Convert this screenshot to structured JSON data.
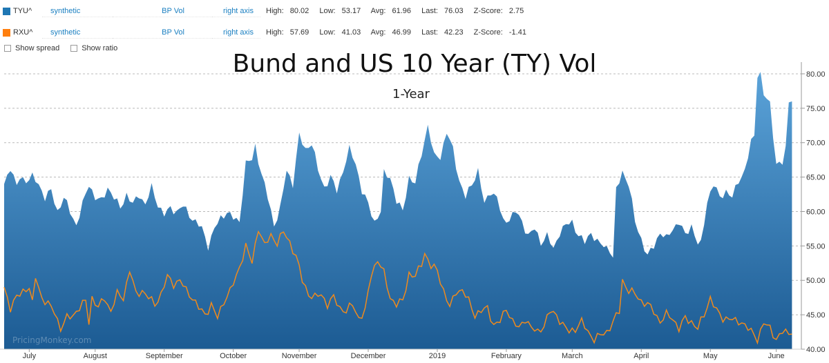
{
  "legend": [
    {
      "symbol": "TYU^",
      "type": "synthetic",
      "unit": "BP Vol",
      "axis": "right axis",
      "high_label": "High:",
      "high": "80.02",
      "low_label": "Low:",
      "low": "53.17",
      "avg_label": "Avg:",
      "avg": "61.96",
      "last_label": "Last:",
      "last": "76.03",
      "z_label": "Z-Score:",
      "z": "2.75",
      "color": "#1f77b4"
    },
    {
      "symbol": "RXU^",
      "type": "synthetic",
      "unit": "BP Vol",
      "axis": "right axis",
      "high_label": "High:",
      "high": "57.69",
      "low_label": "Low:",
      "low": "41.03",
      "avg_label": "Avg:",
      "avg": "46.99",
      "last_label": "Last:",
      "last": "42.23",
      "z_label": "Z-Score:",
      "z": "-1.41",
      "color": "#ff7f0e"
    }
  ],
  "options": {
    "show_spread": "Show spread",
    "show_ratio": "Show ratio"
  },
  "watermark": "PricingMonkey.com",
  "chart_data": {
    "type": "area",
    "title": "Bund and US 10 Year (TY) Vol",
    "subtitle": "1-Year",
    "ylim": [
      40,
      81
    ],
    "y_ticks": [
      "40.00",
      "45.00",
      "50.00",
      "55.00",
      "60.00",
      "65.00",
      "70.00",
      "75.00",
      "80.00"
    ],
    "y_tick_values": [
      40,
      45,
      50,
      55,
      60,
      65,
      70,
      75,
      80
    ],
    "grid": true,
    "x_ticks": [
      "July",
      "August",
      "September",
      "October",
      "November",
      "December",
      "2019",
      "February",
      "March",
      "April",
      "May",
      "June"
    ],
    "x_tick_positions": [
      8,
      29,
      51,
      73,
      94,
      116,
      138,
      160,
      181,
      203,
      225,
      246
    ],
    "n_points": 255,
    "series": [
      {
        "name": "TYU^",
        "type": "area",
        "color_top": "#5ba3d9",
        "color_bottom": "#1c5b93",
        "anchors": [
          [
            0,
            64
          ],
          [
            2,
            66.5
          ],
          [
            4,
            63.5
          ],
          [
            5,
            65
          ],
          [
            7,
            64.5
          ],
          [
            9,
            65
          ],
          [
            11,
            64
          ],
          [
            13,
            62
          ],
          [
            15,
            63
          ],
          [
            17,
            60
          ],
          [
            19,
            62
          ],
          [
            21,
            60
          ],
          [
            23,
            58
          ],
          [
            25,
            61
          ],
          [
            27,
            64
          ],
          [
            29,
            62
          ],
          [
            31,
            61.5
          ],
          [
            33,
            63.5
          ],
          [
            35,
            62
          ],
          [
            37,
            60.5
          ],
          [
            39,
            62.5
          ],
          [
            41,
            61
          ],
          [
            43,
            62.5
          ],
          [
            45,
            61
          ],
          [
            47,
            63.5
          ],
          [
            49,
            61
          ],
          [
            51,
            59.5
          ],
          [
            53,
            60.5
          ],
          [
            55,
            60
          ],
          [
            57,
            60.8
          ],
          [
            59,
            59.5
          ],
          [
            61,
            58.5
          ],
          [
            63,
            57.5
          ],
          [
            65,
            55
          ],
          [
            67,
            57.5
          ],
          [
            69,
            59
          ],
          [
            71,
            60
          ],
          [
            73,
            59
          ],
          [
            75,
            58.5
          ],
          [
            76,
            63
          ],
          [
            77,
            67
          ],
          [
            79,
            67.5
          ],
          [
            80,
            69.5
          ],
          [
            82,
            65.5
          ],
          [
            84,
            62
          ],
          [
            86,
            58
          ],
          [
            88,
            60.5
          ],
          [
            90,
            66
          ],
          [
            92,
            64
          ],
          [
            94,
            71
          ],
          [
            96,
            69
          ],
          [
            98,
            70
          ],
          [
            100,
            66
          ],
          [
            102,
            63.5
          ],
          [
            104,
            65
          ],
          [
            106,
            63
          ],
          [
            108,
            66
          ],
          [
            110,
            69
          ],
          [
            112,
            67
          ],
          [
            114,
            63
          ],
          [
            116,
            61
          ],
          [
            118,
            58.5
          ],
          [
            120,
            60
          ],
          [
            121,
            65.5
          ],
          [
            123,
            65
          ],
          [
            125,
            61.5
          ],
          [
            127,
            60
          ],
          [
            129,
            65
          ],
          [
            131,
            64
          ],
          [
            133,
            68.5
          ],
          [
            135,
            72.5
          ],
          [
            137,
            68
          ],
          [
            139,
            68
          ],
          [
            141,
            71.5
          ],
          [
            143,
            69
          ],
          [
            145,
            64.5
          ],
          [
            147,
            62
          ],
          [
            149,
            64
          ],
          [
            151,
            66
          ],
          [
            153,
            61
          ],
          [
            155,
            63
          ],
          [
            157,
            62
          ],
          [
            159,
            58.5
          ],
          [
            161,
            59
          ],
          [
            163,
            60
          ],
          [
            165,
            58.5
          ],
          [
            167,
            56.5
          ],
          [
            169,
            57.5
          ],
          [
            171,
            55.5
          ],
          [
            173,
            56.5
          ],
          [
            175,
            54.5
          ],
          [
            177,
            57
          ],
          [
            179,
            58
          ],
          [
            181,
            58.5
          ],
          [
            183,
            56.5
          ],
          [
            185,
            55.5
          ],
          [
            187,
            57
          ],
          [
            189,
            55.5
          ],
          [
            191,
            55
          ],
          [
            193,
            54.5
          ],
          [
            194,
            53.2
          ],
          [
            195,
            63
          ],
          [
            197,
            65.8
          ],
          [
            199,
            64
          ],
          [
            201,
            58.5
          ],
          [
            203,
            56
          ],
          [
            205,
            53.5
          ],
          [
            207,
            55
          ],
          [
            209,
            57
          ],
          [
            211,
            56
          ],
          [
            213,
            57.5
          ],
          [
            215,
            58.5
          ],
          [
            217,
            56.5
          ],
          [
            219,
            58
          ],
          [
            221,
            55.3
          ],
          [
            222,
            55.2
          ],
          [
            224,
            61.5
          ],
          [
            226,
            64
          ],
          [
            228,
            62
          ],
          [
            230,
            63
          ],
          [
            232,
            62
          ],
          [
            234,
            64.5
          ],
          [
            236,
            66
          ],
          [
            238,
            70
          ],
          [
            239,
            71
          ],
          [
            240,
            80
          ],
          [
            241,
            80
          ],
          [
            242,
            77
          ],
          [
            244,
            75.5
          ],
          [
            246,
            67
          ],
          [
            248,
            67
          ],
          [
            249,
            69
          ],
          [
            250,
            76
          ],
          [
            251,
            76
          ]
        ]
      },
      {
        "name": "RXU^",
        "type": "line",
        "color": "#f08a1c",
        "anchors": [
          [
            0,
            49
          ],
          [
            2,
            46
          ],
          [
            4,
            47.5
          ],
          [
            6,
            48.5
          ],
          [
            8,
            49
          ],
          [
            9,
            46.5
          ],
          [
            10,
            50.5
          ],
          [
            12,
            47.5
          ],
          [
            14,
            46.5
          ],
          [
            16,
            45.5
          ],
          [
            18,
            43
          ],
          [
            20,
            44.5
          ],
          [
            22,
            45
          ],
          [
            24,
            46
          ],
          [
            26,
            47
          ],
          [
            27,
            44
          ],
          [
            28,
            47.5
          ],
          [
            30,
            46
          ],
          [
            32,
            47.5
          ],
          [
            34,
            45.5
          ],
          [
            36,
            48
          ],
          [
            38,
            47.5
          ],
          [
            40,
            51.5
          ],
          [
            42,
            48
          ],
          [
            44,
            48.5
          ],
          [
            46,
            47.5
          ],
          [
            48,
            46.5
          ],
          [
            50,
            48
          ],
          [
            52,
            50.5
          ],
          [
            54,
            49.5
          ],
          [
            56,
            50
          ],
          [
            58,
            48.5
          ],
          [
            60,
            47.5
          ],
          [
            62,
            46
          ],
          [
            64,
            45
          ],
          [
            66,
            46.5
          ],
          [
            68,
            44.5
          ],
          [
            70,
            47
          ],
          [
            72,
            48.5
          ],
          [
            74,
            50.5
          ],
          [
            75,
            52
          ],
          [
            77,
            55
          ],
          [
            79,
            52.5
          ],
          [
            81,
            57.7
          ],
          [
            83,
            55
          ],
          [
            85,
            56.5
          ],
          [
            87,
            55.5
          ],
          [
            89,
            57
          ],
          [
            91,
            55.5
          ],
          [
            93,
            53.5
          ],
          [
            95,
            50
          ],
          [
            97,
            48
          ],
          [
            99,
            47.5
          ],
          [
            101,
            48
          ],
          [
            103,
            46.5
          ],
          [
            105,
            47.5
          ],
          [
            107,
            46
          ],
          [
            109,
            45.5
          ],
          [
            111,
            46.5
          ],
          [
            113,
            44.5
          ],
          [
            115,
            45.5
          ],
          [
            117,
            51
          ],
          [
            119,
            53
          ],
          [
            121,
            51
          ],
          [
            123,
            47.5
          ],
          [
            125,
            46.5
          ],
          [
            127,
            47
          ],
          [
            129,
            51
          ],
          [
            131,
            50.5
          ],
          [
            133,
            52.5
          ],
          [
            134,
            54
          ],
          [
            136,
            52
          ],
          [
            138,
            51.5
          ],
          [
            140,
            48.5
          ],
          [
            142,
            46
          ],
          [
            144,
            48.5
          ],
          [
            146,
            48.5
          ],
          [
            148,
            47
          ],
          [
            150,
            45
          ],
          [
            152,
            45.5
          ],
          [
            154,
            46
          ],
          [
            156,
            43.5
          ],
          [
            158,
            44
          ],
          [
            160,
            46
          ],
          [
            162,
            44
          ],
          [
            164,
            43
          ],
          [
            166,
            44.5
          ],
          [
            168,
            43
          ],
          [
            170,
            42.5
          ],
          [
            172,
            43.5
          ],
          [
            174,
            45.5
          ],
          [
            176,
            45
          ],
          [
            178,
            43.5
          ],
          [
            180,
            42.5
          ],
          [
            182,
            43
          ],
          [
            184,
            44
          ],
          [
            186,
            42.5
          ],
          [
            188,
            41.5
          ],
          [
            190,
            42
          ],
          [
            192,
            42.5
          ],
          [
            194,
            44
          ],
          [
            196,
            45.5
          ],
          [
            197,
            50
          ],
          [
            199,
            48.5
          ],
          [
            201,
            48
          ],
          [
            203,
            47
          ],
          [
            205,
            46.5
          ],
          [
            207,
            45.5
          ],
          [
            209,
            44
          ],
          [
            211,
            45
          ],
          [
            213,
            44.5
          ],
          [
            215,
            43
          ],
          [
            217,
            44.5
          ],
          [
            219,
            44
          ],
          [
            221,
            43
          ],
          [
            223,
            45
          ],
          [
            225,
            47.5
          ],
          [
            227,
            45.5
          ],
          [
            229,
            44.5
          ],
          [
            231,
            44.5
          ],
          [
            233,
            44
          ],
          [
            235,
            44
          ],
          [
            237,
            43
          ],
          [
            239,
            42
          ],
          [
            240,
            41.5
          ],
          [
            242,
            43.8
          ],
          [
            244,
            43
          ],
          [
            246,
            41.5
          ],
          [
            248,
            42.5
          ],
          [
            250,
            42.3
          ],
          [
            251,
            42.2
          ]
        ]
      }
    ]
  }
}
